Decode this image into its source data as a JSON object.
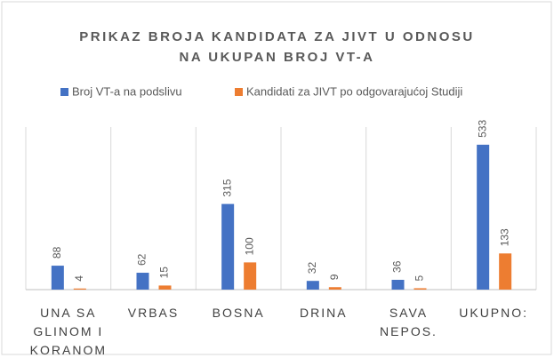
{
  "chart_data": {
    "type": "bar",
    "title": "PRIKAZ BROJA KANDIDATA ZA JIVT U ODNOSU\nNA UKUPAN BROJ VT-A",
    "categories": [
      "UNA SA\nGLINOM I\nKORANOM",
      "VRBAS",
      "BOSNA",
      "DRINA",
      "SAVA\nNEPOS.",
      "UKUPNO:"
    ],
    "series": [
      {
        "name": "Broj VT-a na podslivu",
        "color": "#4472c4",
        "values": [
          88,
          62,
          315,
          32,
          36,
          533
        ]
      },
      {
        "name": "Kandidati za JIVT po odgovarajućoj Studiji",
        "color": "#ed7d31",
        "values": [
          4,
          15,
          100,
          9,
          5,
          133
        ]
      }
    ],
    "grid": true,
    "legend": "top"
  }
}
